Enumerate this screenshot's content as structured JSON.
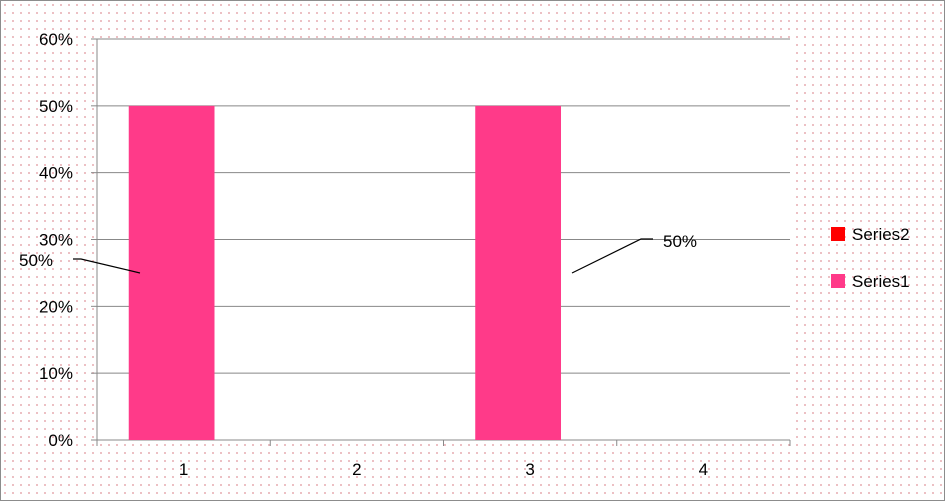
{
  "chart_data": {
    "type": "bar",
    "title": "",
    "xlabel": "",
    "ylabel": "",
    "categories": [
      "1",
      "2",
      "3",
      "4"
    ],
    "series": [
      {
        "name": "Series1",
        "color": "#ff3a89",
        "values": [
          0.5,
          null,
          0.5,
          null
        ]
      },
      {
        "name": "Series2",
        "color": "#ff0000",
        "values": [
          null,
          null,
          null,
          null
        ]
      }
    ],
    "ylim": [
      0,
      0.6
    ],
    "y_ticks": [
      "0%",
      "10%",
      "20%",
      "30%",
      "40%",
      "50%",
      "60%"
    ],
    "data_labels": [
      {
        "series": "Series1",
        "category": "1",
        "text": "50%"
      },
      {
        "series": "Series1",
        "category": "3",
        "text": "50%"
      }
    ],
    "grid": true,
    "legend_position": "right",
    "legend": [
      "Series2",
      "Series1"
    ]
  }
}
